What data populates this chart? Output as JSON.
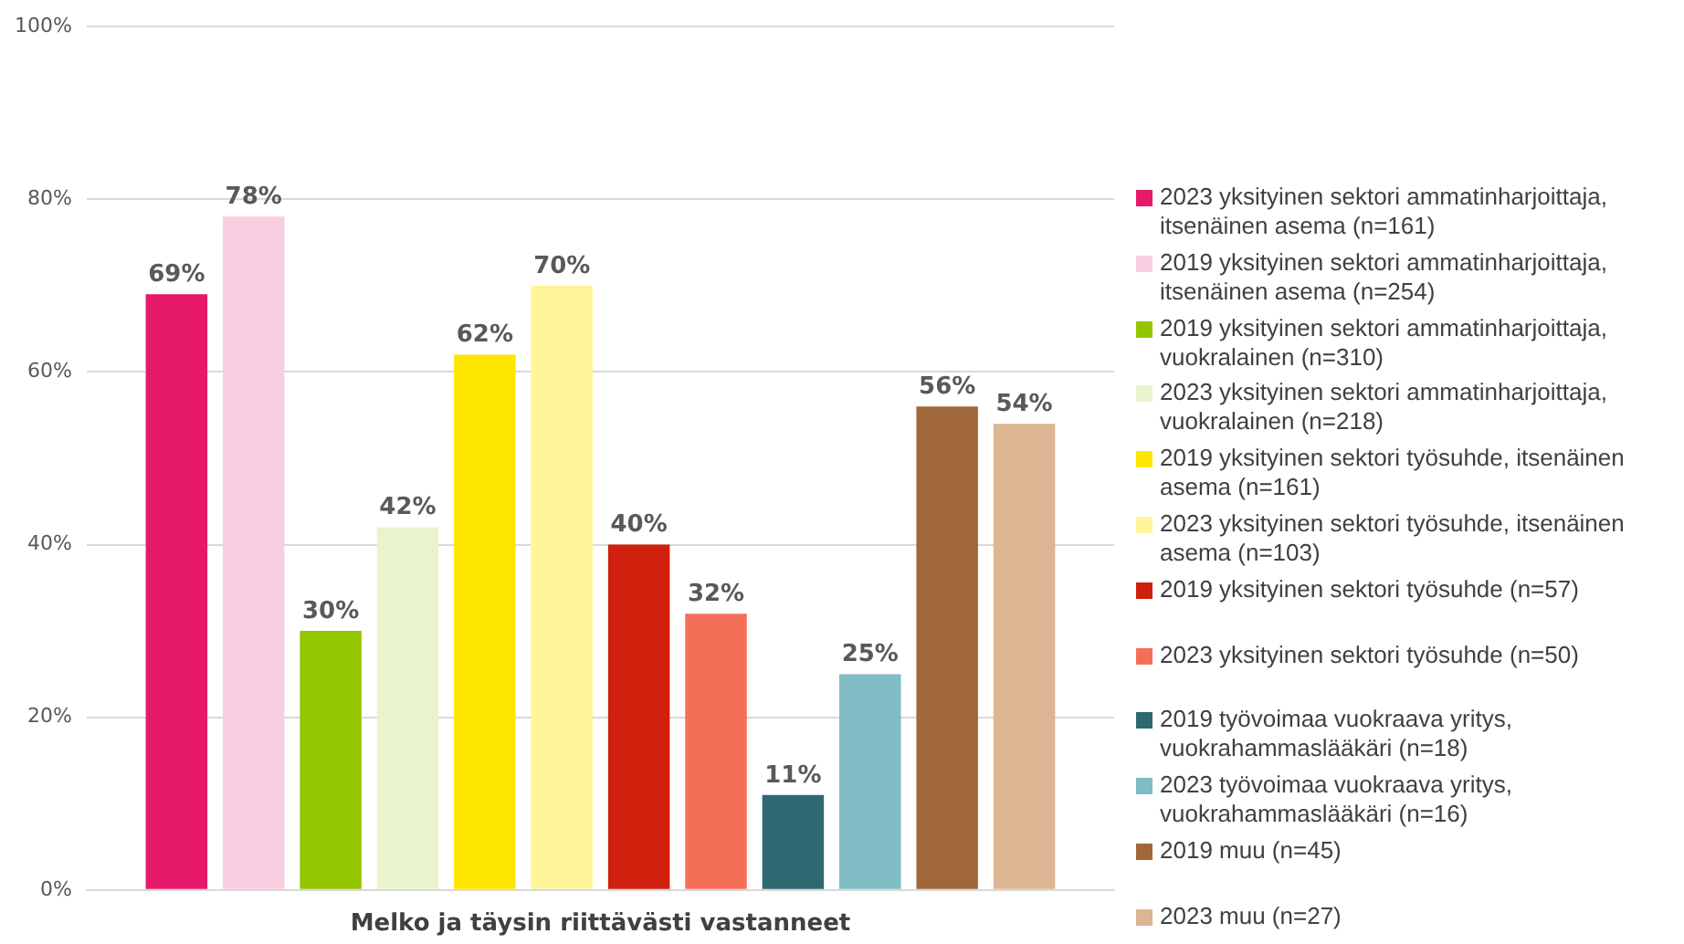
{
  "chart_data": {
    "type": "bar",
    "categories": [
      "Melko ja täysin riittävästi vastanneet"
    ],
    "series": [
      {
        "name": "2023 yksityinen sektori ammatinharjoittaja, itsenäinen asema (n=161)",
        "color": "#e6196b",
        "values": [
          69
        ],
        "value_labels": [
          "69%"
        ]
      },
      {
        "name": "2019 yksityinen sektori ammatinharjoittaja, itsenäinen asema (n=254)",
        "color": "#f9cde0",
        "values": [
          78
        ],
        "value_labels": [
          "78%"
        ]
      },
      {
        "name": "2019 yksityinen sektori ammatinharjoittaja, vuokralainen (n=310)",
        "color": "#94c600",
        "values": [
          30
        ],
        "value_labels": [
          "30%"
        ]
      },
      {
        "name": "2023 yksityinen sektori ammatinharjoittaja, vuokralainen (n=218)",
        "color": "#e9f4cc",
        "values": [
          42
        ],
        "value_labels": [
          "42%"
        ]
      },
      {
        "name": "2019 yksityinen sektori työsuhde, itsenäinen asema (n=161)",
        "color": "#ffe600",
        "values": [
          62
        ],
        "value_labels": [
          "62%"
        ]
      },
      {
        "name": "2023 yksityinen sektori työsuhde, itsenäinen asema (n=103)",
        "color": "#fff59a",
        "values": [
          70
        ],
        "value_labels": [
          "70%"
        ]
      },
      {
        "name": "2019 yksityinen sektori työsuhde (n=57)",
        "color": "#d0200e",
        "values": [
          40
        ],
        "value_labels": [
          "40%"
        ]
      },
      {
        "name": "2023 yksityinen sektori työsuhde (n=50)",
        "color": "#f46f58",
        "values": [
          32
        ],
        "value_labels": [
          "32%"
        ]
      },
      {
        "name": "2019 työvoimaa vuokraava yritys, vuokrahammaslääkäri (n=18)",
        "color": "#2f6870",
        "values": [
          11
        ],
        "value_labels": [
          "11%"
        ]
      },
      {
        "name": "2023 työvoimaa vuokraava yritys, vuokrahammaslääkäri (n=16)",
        "color": "#7fbcc4",
        "values": [
          25
        ],
        "value_labels": [
          "25%"
        ]
      },
      {
        "name": "2019 muu (n=45)",
        "color": "#a0683a",
        "values": [
          56
        ],
        "value_labels": [
          "56%"
        ]
      },
      {
        "name": "2023 muu (n=27)",
        "color": "#dcb592",
        "values": [
          54
        ],
        "value_labels": [
          "54%"
        ]
      }
    ],
    "ylim": [
      0,
      100
    ],
    "yticks": [
      {
        "value": 0,
        "label": "0%"
      },
      {
        "value": 20,
        "label": "20%"
      },
      {
        "value": 40,
        "label": "40%"
      },
      {
        "value": 60,
        "label": "60%"
      },
      {
        "value": 80,
        "label": "80%"
      },
      {
        "value": 100,
        "label": "100%"
      }
    ],
    "grid": "y",
    "legend": "right"
  }
}
